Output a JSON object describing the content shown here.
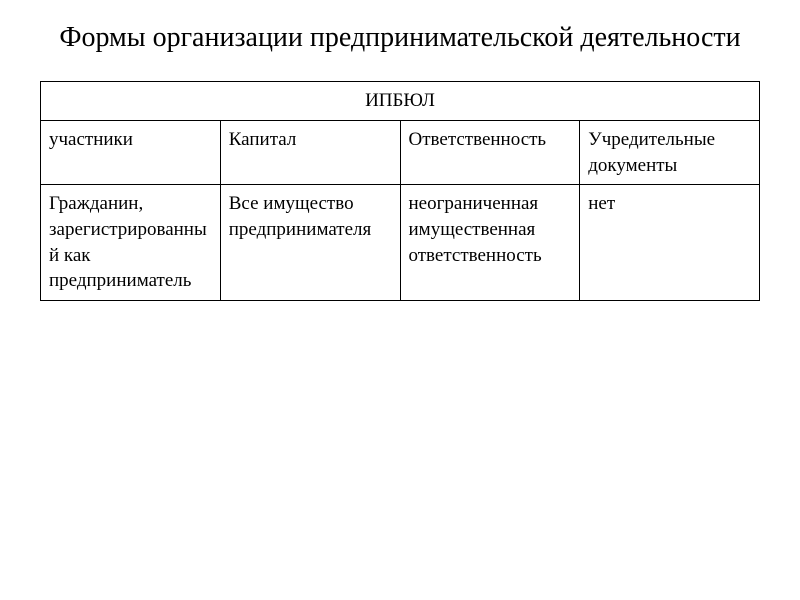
{
  "title": "Формы организации предпринимательской деятельности",
  "table": {
    "spanning_header": "ИПБЮЛ",
    "columns": [
      "участники",
      "Капитал",
      "Ответственность",
      "Учредительные документы"
    ],
    "rows": [
      [
        "Гражданин, зарегистрированный как предприниматель",
        "Все имущество предпринимателя",
        "неограниченная имущественная ответственность",
        "нет"
      ]
    ],
    "column_widths": [
      "25%",
      "25%",
      "25%",
      "25%"
    ],
    "border_color": "#000000",
    "text_color": "#000000",
    "background_color": "#ffffff",
    "title_fontsize": 28,
    "cell_fontsize": 19
  }
}
